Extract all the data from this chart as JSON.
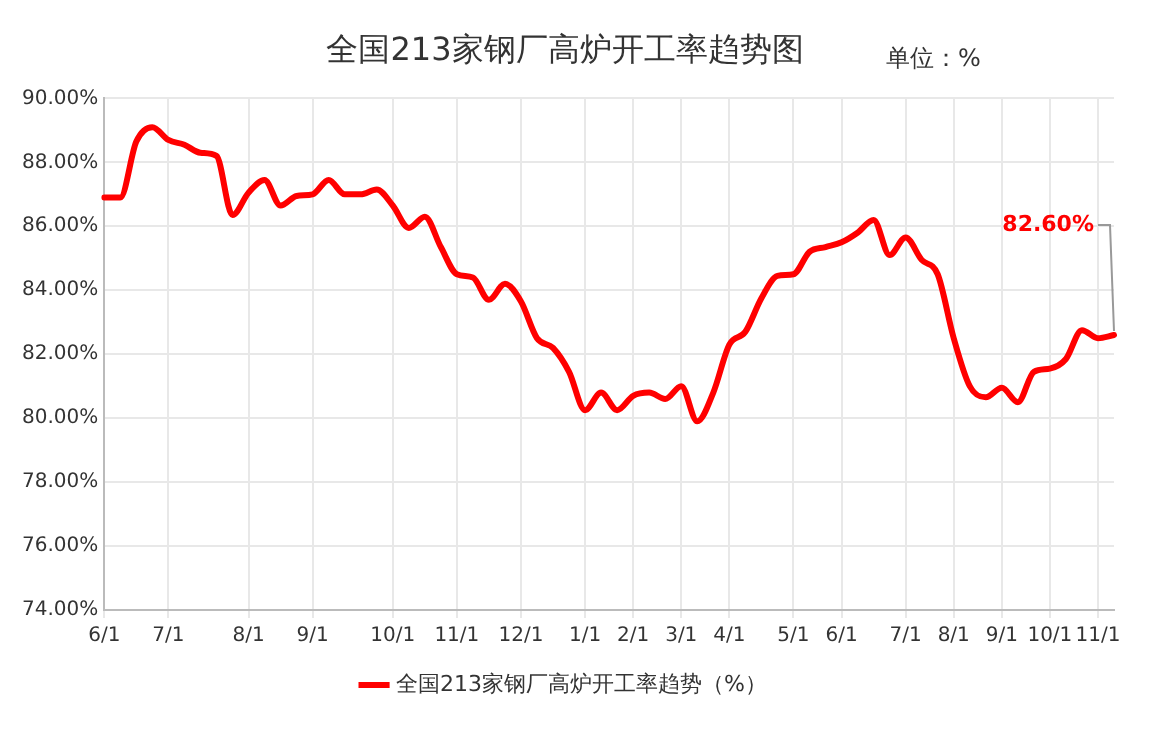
{
  "chart_data": {
    "type": "line",
    "title": "全国213家钢厂高炉开工率趋势图",
    "subtitle": "单位：%",
    "categories": [
      "6/1",
      null,
      null,
      null,
      "7/1",
      null,
      null,
      null,
      null,
      "8/1",
      null,
      null,
      null,
      "9/1",
      null,
      null,
      null,
      null,
      "10/1",
      null,
      null,
      null,
      "11/1",
      null,
      null,
      null,
      "12/1",
      null,
      null,
      null,
      "1/1",
      null,
      null,
      "2/1",
      null,
      null,
      "3/1",
      null,
      null,
      "4/1",
      null,
      null,
      null,
      "5/1",
      null,
      null,
      "6/1",
      null,
      null,
      null,
      "7/1",
      null,
      null,
      "8/1",
      null,
      null,
      "9/1",
      null,
      null,
      "10/1",
      null,
      null,
      "11/1",
      null
    ],
    "series": [
      {
        "name": "全国213家钢厂高炉开工率趋势（%）",
        "color": "#ff0000",
        "values": [
          86.9,
          86.9,
          88.65,
          89.1,
          88.7,
          88.55,
          88.3,
          88.2,
          86.35,
          87.05,
          87.45,
          86.65,
          86.95,
          87.0,
          87.45,
          87.0,
          87.0,
          87.15,
          86.65,
          85.95,
          86.3,
          85.35,
          84.5,
          84.4,
          83.7,
          84.2,
          83.65,
          82.5,
          82.2,
          81.45,
          80.25,
          80.8,
          80.25,
          80.7,
          80.8,
          80.6,
          81.0,
          79.9,
          80.8,
          82.3,
          82.7,
          83.75,
          84.45,
          84.5,
          85.2,
          85.35,
          85.5,
          85.8,
          86.2,
          85.1,
          85.65,
          84.95,
          84.5,
          82.5,
          81.0,
          80.65,
          80.95,
          80.5,
          81.45,
          81.55,
          81.85,
          82.75,
          82.5,
          82.6
        ]
      }
    ],
    "ylim": [
      74,
      90
    ],
    "yticks": [
      {
        "value": 74,
        "label": "74.00%"
      },
      {
        "value": 76,
        "label": "76.00%"
      },
      {
        "value": 78,
        "label": "78.00%"
      },
      {
        "value": 80,
        "label": "80.00%"
      },
      {
        "value": 82,
        "label": "82.00%"
      },
      {
        "value": 84,
        "label": "84.00%"
      },
      {
        "value": 86,
        "label": "86.00%"
      },
      {
        "value": 88,
        "label": "88.00%"
      },
      {
        "value": 90,
        "label": "90.00%"
      }
    ],
    "value_labels": [
      null,
      null,
      null,
      null,
      null,
      null,
      null,
      null,
      null,
      null,
      null,
      null,
      null,
      null,
      null,
      null,
      null,
      null,
      null,
      null,
      null,
      null,
      null,
      null,
      null,
      null,
      null,
      null,
      null,
      null,
      null,
      null,
      null,
      null,
      null,
      null,
      null,
      null,
      null,
      null,
      null,
      null,
      null,
      null,
      null,
      null,
      null,
      null,
      null,
      null,
      null,
      null,
      null,
      null,
      null,
      null,
      null,
      null,
      null,
      null,
      null,
      null,
      null,
      "82.60%"
    ],
    "grid": true,
    "legend": "bottom",
    "marker": "none",
    "line_style": "solid"
  }
}
